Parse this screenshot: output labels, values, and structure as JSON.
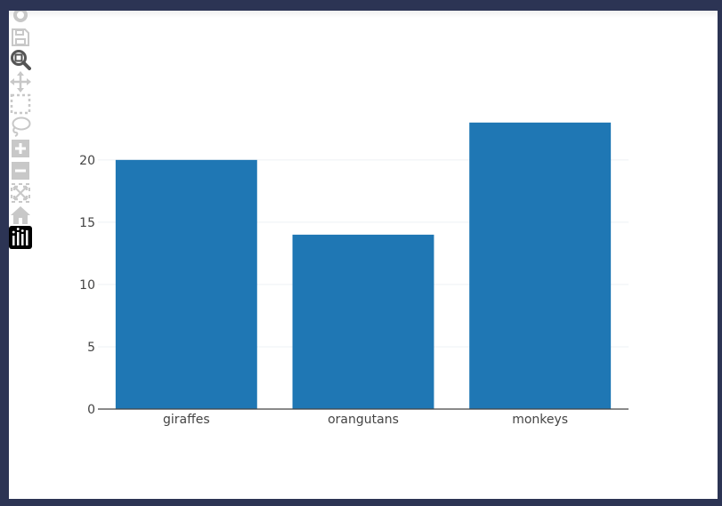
{
  "colors": {
    "background": "#2c3454",
    "plot_background": "#ffffff",
    "bar": "#1f77b4",
    "grid": "#eef1f4",
    "axis": "#444444",
    "modebar_icon": "#c8c8c8",
    "modebar_active": "#555555"
  },
  "modebar": {
    "buttons": [
      {
        "name": "camera-icon",
        "active": false
      },
      {
        "name": "save-icon",
        "active": false
      },
      {
        "name": "zoom-icon",
        "active": true
      },
      {
        "name": "pan-icon",
        "active": false
      },
      {
        "name": "box-select-icon",
        "active": false
      },
      {
        "name": "lasso-icon",
        "active": false
      },
      {
        "name": "zoom-in-icon",
        "active": false
      },
      {
        "name": "zoom-out-icon",
        "active": false
      },
      {
        "name": "autoscale-icon",
        "active": false
      },
      {
        "name": "reset-axes-icon",
        "active": false
      },
      {
        "name": "plotly-logo-icon",
        "active": false
      }
    ]
  },
  "chart_data": {
    "type": "bar",
    "title": "",
    "xlabel": "",
    "ylabel": "",
    "categories": [
      "giraffes",
      "orangutans",
      "monkeys"
    ],
    "values": [
      20,
      14,
      23
    ],
    "ylim": [
      0,
      24.2
    ],
    "yticks": [
      0,
      5,
      10,
      15,
      20
    ],
    "grid": true,
    "legend": "none"
  }
}
